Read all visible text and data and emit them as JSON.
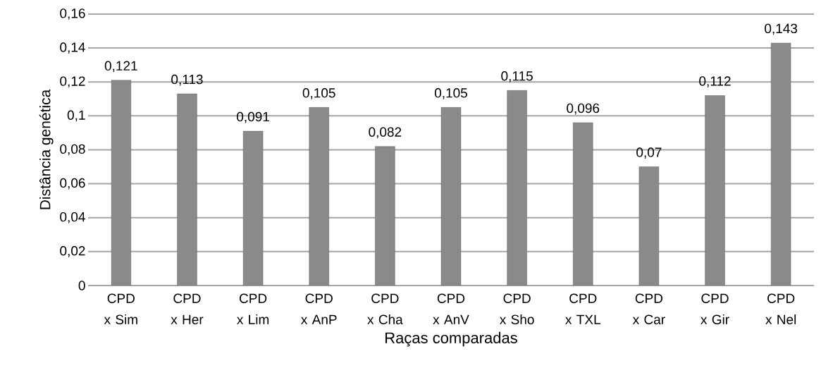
{
  "chart_data": {
    "type": "bar",
    "xlabel": "Raças comparadas",
    "ylabel": "Distância genética",
    "categories": [
      "CPD x Sim",
      "CPD x Her",
      "CPD x Lim",
      "CPD x AnP",
      "CPD x Cha",
      "CPD x AnV",
      "CPD x Sho",
      "CPD x TXL",
      "CPD x Car",
      "CPD x Gir",
      "CPD x Nel"
    ],
    "values": [
      0.121,
      0.113,
      0.091,
      0.105,
      0.082,
      0.105,
      0.115,
      0.096,
      0.07,
      0.112,
      0.143
    ],
    "value_labels": [
      "0,121",
      "0,113",
      "0,091",
      "0,105",
      "0,082",
      "0,105",
      "0,115",
      "0,096",
      "0,07",
      "0,112",
      "0,143"
    ],
    "color": "#8a8a8a",
    "ylim": [
      0,
      0.16
    ],
    "yticks": [
      {
        "value": 0,
        "label": "0"
      },
      {
        "value": 0.02,
        "label": "0,02"
      },
      {
        "value": 0.04,
        "label": "0,04"
      },
      {
        "value": 0.06,
        "label": "0,06"
      },
      {
        "value": 0.08,
        "label": "0,08"
      },
      {
        "value": 0.1,
        "label": "0,1"
      },
      {
        "value": 0.12,
        "label": "0,12"
      },
      {
        "value": 0.14,
        "label": "0,14"
      },
      {
        "value": 0.16,
        "label": "0,16"
      }
    ],
    "grid": "y"
  }
}
